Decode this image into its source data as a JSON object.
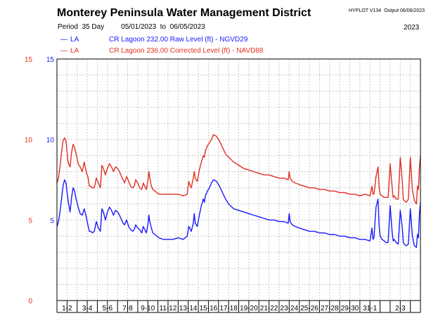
{
  "header": {
    "title": "Monterey Peninsula Water Management District",
    "program": "HYPLOT V134",
    "output": "Output 06/06/2023",
    "period_label": "Period",
    "period_length": "35 Day",
    "date_from": "05/01/2023",
    "date_to_word": "to",
    "date_to": "06/05/2023",
    "year": "2023"
  },
  "colors": {
    "raw": "#1a1aff",
    "corrected": "#e03020",
    "grid": "#c8c8c8",
    "axis": "#000000"
  },
  "chart_data": {
    "type": "line",
    "title": "Monterey Peninsula Water Management District",
    "ylim": [
      0,
      15
    ],
    "xlim": [
      0,
      36
    ],
    "grid": true,
    "legend_position": "top-left",
    "left_ticks": [
      {
        "value": 0,
        "label": "0"
      },
      {
        "value": 5,
        "label": "5"
      },
      {
        "value": 10,
        "label": "10"
      },
      {
        "value": 15,
        "label": "15"
      }
    ],
    "inner_ticks": [
      {
        "value": 5,
        "label": "5"
      },
      {
        "value": 10,
        "label": "10"
      },
      {
        "value": 15,
        "label": "15"
      }
    ],
    "x_tick_labels": [
      {
        "x": 1,
        "label": "1-2"
      },
      {
        "x": 3,
        "label": "3-4"
      },
      {
        "x": 5,
        "label": "5-6"
      },
      {
        "x": 7,
        "label": "7-8"
      },
      {
        "x": 9,
        "label": "9-10"
      },
      {
        "x": 11,
        "label": "11-12"
      },
      {
        "x": 13,
        "label": "13-14"
      },
      {
        "x": 15,
        "label": "15-16"
      },
      {
        "x": 17,
        "label": "17-18"
      },
      {
        "x": 19,
        "label": "19-20"
      },
      {
        "x": 21,
        "label": "21-22"
      },
      {
        "x": 23,
        "label": "23-24"
      },
      {
        "x": 25,
        "label": "25-26"
      },
      {
        "x": 27,
        "label": "27-28"
      },
      {
        "x": 29,
        "label": "29-30"
      },
      {
        "x": 31,
        "label": "31-1"
      },
      {
        "x": 34,
        "label": "2-3"
      }
    ],
    "series": [
      {
        "name": "CR Lagoon  232.00 Raw Level (ft) - NGVD29",
        "legend_symbol": "—",
        "site": "LA",
        "color": "#1a1aff",
        "x": [
          0,
          0.15,
          0.3,
          0.45,
          0.6,
          0.75,
          0.9,
          1.1,
          1.3,
          1.45,
          1.6,
          1.75,
          1.9,
          2.1,
          2.3,
          2.5,
          2.7,
          2.9,
          3.1,
          3.2,
          3.35,
          3.5,
          3.7,
          3.9,
          4.1,
          4.3,
          4.45,
          4.6,
          4.8,
          5.0,
          5.2,
          5.4,
          5.6,
          5.8,
          6.0,
          6.2,
          6.4,
          6.55,
          6.7,
          6.9,
          7.1,
          7.3,
          7.5,
          7.65,
          7.8,
          8.0,
          8.2,
          8.4,
          8.55,
          8.7,
          8.85,
          9.0,
          9.1,
          9.2,
          9.35,
          9.5,
          9.7,
          9.9,
          10.1,
          10.5,
          11.0,
          11.5,
          12.0,
          12.5,
          12.9,
          13.05,
          13.15,
          13.3,
          13.5,
          13.6,
          13.7,
          13.9,
          14.1,
          14.3,
          14.5,
          14.6,
          14.7,
          14.9,
          15.1,
          15.3,
          15.5,
          15.8,
          16.1,
          16.4,
          16.7,
          17.0,
          17.5,
          18.0,
          18.5,
          19.0,
          19.5,
          20.0,
          20.5,
          21.0,
          21.5,
          22.0,
          22.5,
          22.9,
          23.0,
          23.1,
          23.3,
          23.6,
          24.0,
          24.5,
          25.0,
          25.5,
          26.0,
          26.5,
          27.0,
          27.5,
          28.0,
          28.5,
          29.0,
          29.5,
          30.0,
          30.5,
          31.0,
          31.2,
          31.3,
          31.4,
          31.6,
          31.8,
          31.9,
          32.0,
          32.2,
          32.4,
          32.6,
          32.8,
          33.0,
          33.2,
          33.3,
          33.4,
          33.6,
          33.8,
          34.0,
          34.2,
          34.3,
          34.4,
          34.6,
          34.8,
          35.0,
          35.2,
          35.4,
          35.6,
          35.7,
          35.8,
          35.9,
          36.0
        ],
        "y": [
          4.6,
          4.9,
          5.5,
          6.3,
          7.1,
          7.5,
          7.3,
          6.2,
          5.5,
          6.4,
          7.0,
          6.8,
          6.3,
          5.8,
          5.4,
          5.3,
          5.7,
          5.2,
          4.6,
          4.3,
          4.3,
          4.2,
          4.3,
          4.9,
          4.5,
          4.3,
          5.7,
          5.5,
          5.0,
          5.5,
          5.8,
          5.6,
          5.3,
          5.6,
          5.5,
          5.3,
          5.0,
          4.8,
          4.7,
          5.0,
          4.6,
          4.4,
          4.3,
          4.4,
          4.7,
          4.5,
          4.4,
          4.2,
          4.6,
          4.4,
          4.2,
          4.7,
          5.3,
          4.9,
          4.5,
          4.2,
          4.1,
          4.0,
          3.9,
          3.8,
          3.8,
          3.8,
          3.9,
          3.8,
          4.0,
          4.6,
          4.5,
          4.3,
          4.8,
          5.4,
          4.8,
          4.6,
          5.3,
          5.9,
          6.3,
          6.1,
          6.5,
          6.8,
          7.0,
          7.3,
          7.5,
          7.4,
          7.1,
          6.7,
          6.3,
          6.0,
          5.7,
          5.6,
          5.5,
          5.4,
          5.3,
          5.2,
          5.1,
          5.0,
          5.0,
          4.9,
          4.9,
          4.8,
          5.4,
          4.9,
          4.7,
          4.6,
          4.5,
          4.4,
          4.3,
          4.3,
          4.2,
          4.2,
          4.1,
          4.1,
          4.0,
          4.0,
          3.9,
          3.9,
          3.8,
          3.8,
          3.7,
          4.5,
          3.8,
          3.9,
          5.8,
          6.3,
          4.7,
          4.0,
          3.8,
          3.7,
          3.6,
          3.6,
          5.9,
          4.2,
          3.7,
          3.8,
          3.6,
          3.5,
          5.6,
          4.5,
          3.6,
          3.5,
          3.4,
          3.5,
          5.7,
          4.0,
          3.4,
          3.3,
          4.1,
          3.9,
          5.4,
          6.1
        ]
      },
      {
        "name": "CR Lagoon  236.00 Corrected Level (ft) - NAVD88",
        "legend_symbol": "—",
        "site": "LA",
        "color": "#e03020",
        "x": [
          0,
          0.15,
          0.3,
          0.45,
          0.6,
          0.75,
          0.9,
          1.1,
          1.3,
          1.45,
          1.6,
          1.75,
          1.9,
          2.1,
          2.3,
          2.5,
          2.7,
          2.9,
          3.1,
          3.2,
          3.35,
          3.5,
          3.7,
          3.9,
          4.1,
          4.3,
          4.45,
          4.6,
          4.8,
          5.0,
          5.2,
          5.4,
          5.6,
          5.8,
          6.0,
          6.2,
          6.4,
          6.55,
          6.7,
          6.9,
          7.1,
          7.3,
          7.5,
          7.65,
          7.8,
          8.0,
          8.2,
          8.4,
          8.55,
          8.7,
          8.85,
          9.0,
          9.1,
          9.2,
          9.35,
          9.5,
          9.7,
          9.9,
          10.1,
          10.5,
          11.0,
          11.5,
          12.0,
          12.5,
          12.9,
          13.05,
          13.15,
          13.3,
          13.5,
          13.6,
          13.7,
          13.9,
          14.1,
          14.3,
          14.5,
          14.6,
          14.7,
          14.9,
          15.1,
          15.3,
          15.5,
          15.8,
          16.1,
          16.4,
          16.7,
          17.0,
          17.5,
          18.0,
          18.5,
          19.0,
          19.5,
          20.0,
          20.5,
          21.0,
          21.5,
          22.0,
          22.5,
          22.9,
          23.0,
          23.1,
          23.3,
          23.6,
          24.0,
          24.5,
          25.0,
          25.5,
          26.0,
          26.5,
          27.0,
          27.5,
          28.0,
          28.5,
          29.0,
          29.5,
          30.0,
          30.5,
          31.0,
          31.2,
          31.3,
          31.4,
          31.6,
          31.8,
          31.9,
          32.0,
          32.2,
          32.4,
          32.6,
          32.8,
          33.0,
          33.2,
          33.3,
          33.4,
          33.6,
          33.8,
          34.0,
          34.2,
          34.3,
          34.4,
          34.6,
          34.8,
          35.0,
          35.2,
          35.4,
          35.6,
          35.7,
          35.8,
          35.9,
          36.0
        ],
        "y": [
          7.3,
          7.6,
          8.3,
          9.2,
          9.9,
          10.1,
          9.9,
          8.6,
          8.3,
          9.2,
          9.7,
          9.5,
          9.1,
          8.5,
          8.3,
          8.0,
          8.6,
          8.0,
          7.6,
          7.1,
          7.1,
          7.0,
          7.0,
          7.6,
          7.3,
          7.0,
          8.4,
          8.2,
          7.8,
          8.2,
          8.5,
          8.3,
          8.0,
          8.3,
          8.2,
          8.0,
          7.7,
          7.5,
          7.3,
          7.7,
          7.4,
          7.1,
          7.0,
          7.1,
          7.5,
          7.3,
          7.0,
          6.9,
          7.3,
          7.1,
          6.9,
          7.4,
          8.0,
          7.6,
          7.1,
          6.9,
          6.8,
          6.7,
          6.6,
          6.6,
          6.6,
          6.6,
          6.6,
          6.5,
          6.6,
          7.4,
          7.2,
          7.0,
          7.6,
          8.0,
          7.6,
          7.4,
          8.1,
          8.6,
          9.0,
          8.9,
          9.3,
          9.6,
          9.8,
          10.0,
          10.3,
          10.2,
          9.9,
          9.5,
          9.1,
          8.9,
          8.6,
          8.4,
          8.2,
          8.1,
          8.0,
          7.9,
          7.8,
          7.8,
          7.7,
          7.6,
          7.6,
          7.5,
          8.0,
          7.6,
          7.4,
          7.3,
          7.2,
          7.1,
          7.0,
          7.0,
          6.9,
          6.9,
          6.8,
          6.8,
          6.7,
          6.7,
          6.6,
          6.6,
          6.5,
          6.6,
          6.5,
          7.1,
          6.6,
          6.6,
          7.7,
          8.3,
          7.1,
          6.6,
          6.5,
          6.4,
          6.4,
          6.4,
          8.5,
          7.0,
          6.4,
          6.5,
          6.3,
          6.3,
          8.9,
          7.4,
          6.3,
          6.2,
          6.1,
          6.3,
          8.9,
          6.9,
          6.2,
          6.0,
          7.1,
          6.9,
          8.3,
          9.0
        ]
      }
    ]
  }
}
